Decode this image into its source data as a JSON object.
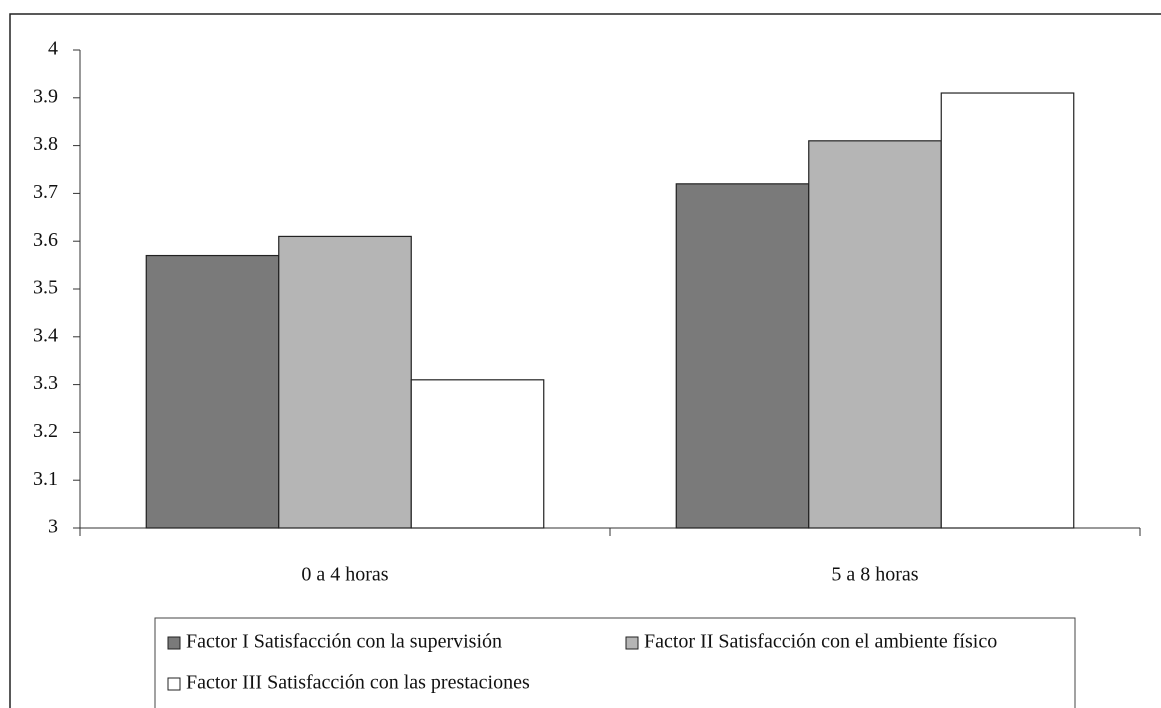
{
  "chart_data": {
    "type": "bar",
    "categories": [
      "0 a 4 horas",
      "5 a 8 horas"
    ],
    "series": [
      {
        "name": "Factor I Satisfacción con la supervisión",
        "color": "#7a7a7a",
        "values": [
          3.57,
          3.72
        ]
      },
      {
        "name": "Factor II Satisfacción con el ambiente físico",
        "color": "#b5b5b5",
        "values": [
          3.61,
          3.81
        ]
      },
      {
        "name": "Factor III Satisfacción con las prestaciones",
        "color": "#ffffff",
        "values": [
          3.31,
          3.91
        ]
      }
    ],
    "ylim": [
      3,
      4
    ],
    "yticks": [
      3,
      3.1,
      3.2,
      3.3,
      3.4,
      3.5,
      3.6,
      3.7,
      3.8,
      3.9,
      4
    ],
    "grid": false,
    "legend": "bottom"
  }
}
